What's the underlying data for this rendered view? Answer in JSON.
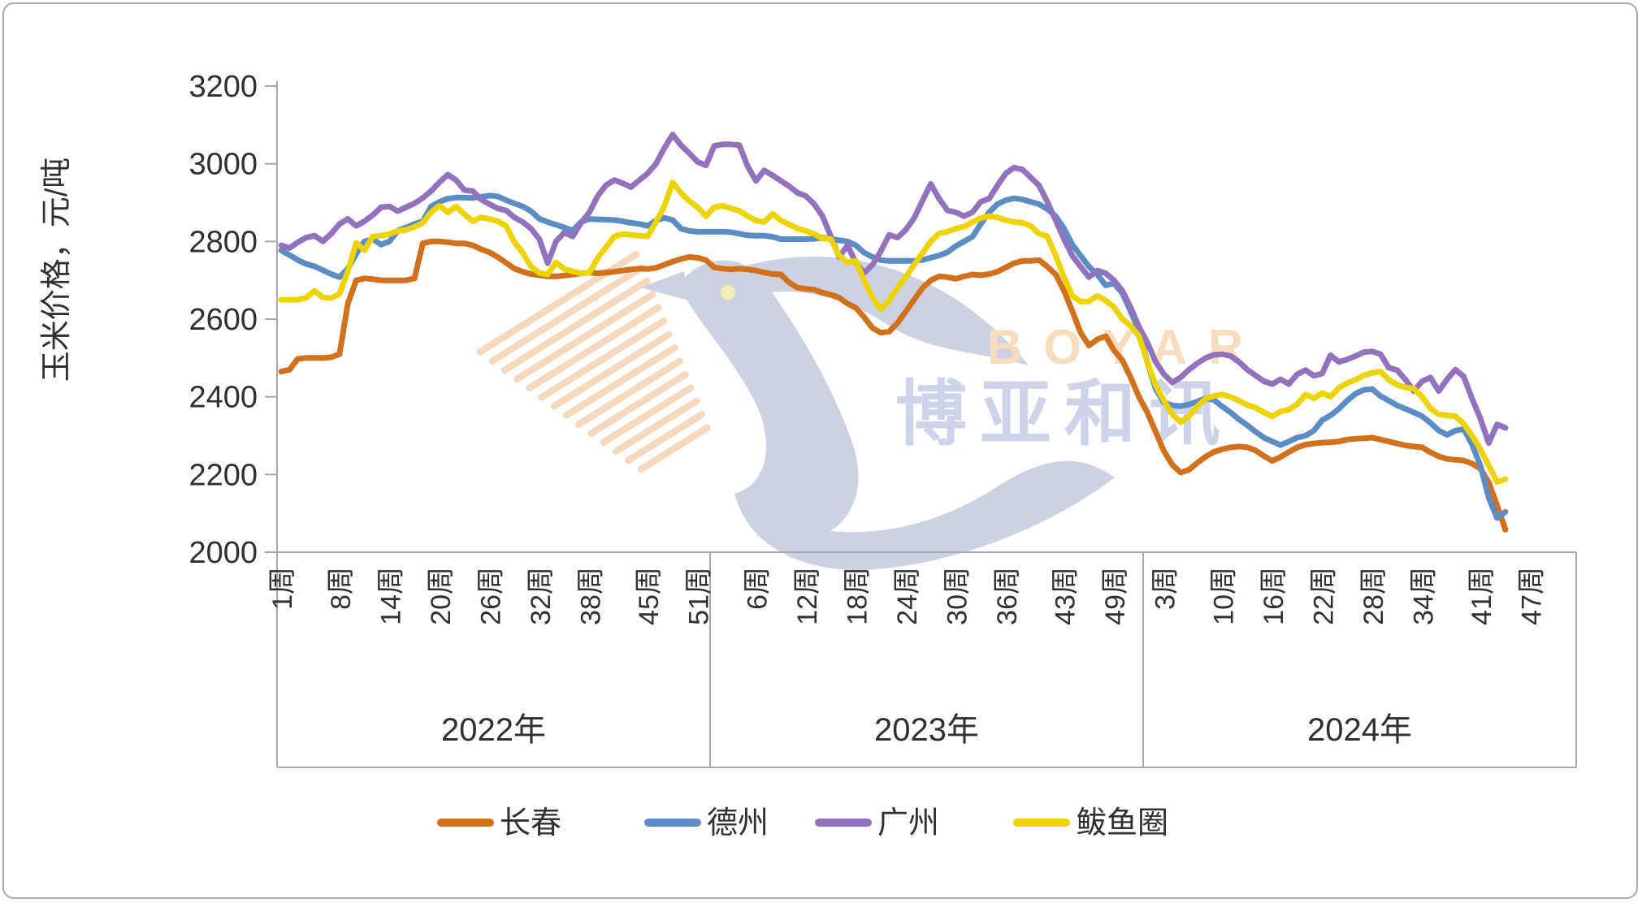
{
  "chart_data": {
    "type": "line",
    "title": "",
    "ylabel": "玉米价格，元/吨",
    "grid": false,
    "legend_position": "bottom",
    "y_axis": {
      "min": 2000,
      "max": 3200,
      "step": 200,
      "tick_labels": [
        "3200",
        "3000",
        "2800",
        "2600",
        "2400",
        "2200",
        "2000"
      ]
    },
    "x_axis": {
      "unit_suffix": "周",
      "groups": [
        {
          "year_label": "2022年",
          "weeks_in_year": 52,
          "tick_weeks": [
            1,
            8,
            14,
            20,
            26,
            32,
            38,
            45,
            51
          ]
        },
        {
          "year_label": "2023年",
          "weeks_in_year": 52,
          "tick_weeks": [
            6,
            12,
            18,
            24,
            30,
            36,
            43,
            49
          ]
        },
        {
          "year_label": "2024年",
          "weeks_in_year": 52,
          "tick_weeks": [
            3,
            10,
            16,
            22,
            28,
            34,
            41,
            47
          ]
        }
      ]
    },
    "series": [
      {
        "name": "长春",
        "color": "#D2711C",
        "values_2022": [
          2465,
          2470,
          2498,
          2500,
          2500,
          2500,
          2502,
          2510,
          2640,
          2700,
          2705,
          2703,
          2700,
          2700,
          2700,
          2700,
          2705,
          2795,
          2800,
          2800,
          2798,
          2795,
          2795,
          2790,
          2780,
          2772,
          2760,
          2745,
          2730,
          2722,
          2716,
          2713,
          2710,
          2710,
          2712,
          2715,
          2718,
          2720,
          2718,
          2720,
          2722,
          2725,
          2728,
          2730,
          2729,
          2732,
          2740,
          2748,
          2755,
          2760,
          2758,
          2752
        ],
        "values_2023": [
          2733,
          2730,
          2728,
          2730,
          2728,
          2725,
          2720,
          2716,
          2715,
          2694,
          2681,
          2678,
          2676,
          2668,
          2663,
          2655,
          2640,
          2629,
          2605,
          2577,
          2565,
          2568,
          2590,
          2620,
          2650,
          2680,
          2700,
          2710,
          2708,
          2704,
          2710,
          2715,
          2713,
          2716,
          2722,
          2733,
          2744,
          2750,
          2750,
          2752,
          2735,
          2715,
          2673,
          2620,
          2565,
          2532,
          2548,
          2556,
          2520,
          2494,
          2450,
          2400
        ],
        "values_2024": [
          2360,
          2310,
          2260,
          2225,
          2205,
          2212,
          2230,
          2246,
          2258,
          2265,
          2270,
          2272,
          2270,
          2262,
          2248,
          2235,
          2245,
          2258,
          2270,
          2277,
          2280,
          2282,
          2283,
          2285,
          2290,
          2292,
          2293,
          2295,
          2290,
          2285,
          2280,
          2275,
          2272,
          2270,
          2257,
          2247,
          2240,
          2238,
          2236,
          2228,
          2215,
          2180,
          2120,
          2058
        ]
      },
      {
        "name": "德州",
        "color": "#5B8DC4",
        "values_2022": [
          2777,
          2765,
          2752,
          2742,
          2736,
          2726,
          2716,
          2708,
          2730,
          2768,
          2800,
          2806,
          2792,
          2800,
          2828,
          2836,
          2845,
          2852,
          2890,
          2902,
          2910,
          2913,
          2913,
          2912,
          2915,
          2918,
          2916,
          2906,
          2898,
          2890,
          2878,
          2858,
          2850,
          2843,
          2836,
          2828,
          2850,
          2858,
          2857,
          2856,
          2855,
          2852,
          2848,
          2845,
          2840,
          2854,
          2861,
          2855,
          2833,
          2827,
          2825,
          2825
        ],
        "values_2023": [
          2825,
          2825,
          2824,
          2820,
          2816,
          2815,
          2815,
          2812,
          2806,
          2806,
          2806,
          2806,
          2807,
          2810,
          2806,
          2803,
          2800,
          2790,
          2771,
          2760,
          2752,
          2750,
          2750,
          2750,
          2750,
          2752,
          2758,
          2764,
          2772,
          2788,
          2800,
          2812,
          2845,
          2875,
          2896,
          2906,
          2911,
          2908,
          2902,
          2896,
          2883,
          2865,
          2833,
          2792,
          2763,
          2735,
          2715,
          2687,
          2692,
          2667,
          2620,
          2569
        ],
        "values_2024": [
          2490,
          2420,
          2385,
          2378,
          2376,
          2380,
          2388,
          2396,
          2392,
          2375,
          2360,
          2342,
          2327,
          2310,
          2295,
          2285,
          2276,
          2285,
          2295,
          2300,
          2313,
          2340,
          2352,
          2369,
          2390,
          2408,
          2418,
          2420,
          2402,
          2390,
          2378,
          2369,
          2360,
          2350,
          2333,
          2313,
          2302,
          2313,
          2317,
          2277,
          2223,
          2140,
          2088,
          2104
        ]
      },
      {
        "name": "广州",
        "color": "#9272BC",
        "values_2022": [
          2790,
          2783,
          2798,
          2810,
          2815,
          2800,
          2820,
          2845,
          2858,
          2840,
          2852,
          2868,
          2888,
          2890,
          2878,
          2888,
          2898,
          2912,
          2930,
          2952,
          2972,
          2958,
          2932,
          2930,
          2908,
          2896,
          2885,
          2880,
          2862,
          2850,
          2833,
          2806,
          2744,
          2800,
          2823,
          2813,
          2848,
          2875,
          2917,
          2945,
          2958,
          2950,
          2940,
          2958,
          2975,
          3000,
          3040,
          3075,
          3048,
          3027,
          3005,
          2996
        ],
        "values_2023": [
          3046,
          3050,
          3050,
          3048,
          2994,
          2956,
          2983,
          2970,
          2956,
          2942,
          2925,
          2917,
          2896,
          2865,
          2813,
          2760,
          2790,
          2745,
          2719,
          2740,
          2775,
          2817,
          2810,
          2830,
          2860,
          2905,
          2948,
          2910,
          2880,
          2875,
          2865,
          2875,
          2902,
          2910,
          2944,
          2975,
          2990,
          2985,
          2965,
          2944,
          2902,
          2854,
          2806,
          2763,
          2735,
          2708,
          2725,
          2718,
          2700,
          2673,
          2630,
          2580
        ],
        "values_2024": [
          2540,
          2490,
          2458,
          2437,
          2450,
          2470,
          2486,
          2500,
          2508,
          2510,
          2505,
          2490,
          2470,
          2455,
          2440,
          2433,
          2445,
          2433,
          2458,
          2469,
          2454,
          2460,
          2507,
          2490,
          2496,
          2505,
          2515,
          2517,
          2510,
          2475,
          2469,
          2444,
          2415,
          2440,
          2450,
          2415,
          2445,
          2470,
          2452,
          2395,
          2344,
          2281,
          2329,
          2320
        ]
      },
      {
        "name": "鲅鱼圈",
        "color": "#EDD300",
        "values_2022": [
          2650,
          2650,
          2650,
          2655,
          2673,
          2656,
          2654,
          2665,
          2723,
          2796,
          2777,
          2813,
          2815,
          2819,
          2827,
          2830,
          2837,
          2848,
          2875,
          2892,
          2875,
          2890,
          2870,
          2852,
          2862,
          2858,
          2852,
          2840,
          2798,
          2771,
          2735,
          2719,
          2715,
          2746,
          2729,
          2723,
          2718,
          2720,
          2757,
          2785,
          2813,
          2819,
          2817,
          2815,
          2813,
          2850,
          2890,
          2952,
          2925,
          2904,
          2888,
          2865
        ],
        "values_2023": [
          2888,
          2892,
          2885,
          2879,
          2865,
          2854,
          2850,
          2871,
          2854,
          2844,
          2833,
          2827,
          2819,
          2808,
          2806,
          2763,
          2746,
          2750,
          2700,
          2655,
          2625,
          2648,
          2680,
          2708,
          2740,
          2770,
          2800,
          2821,
          2825,
          2833,
          2838,
          2850,
          2860,
          2865,
          2862,
          2855,
          2850,
          2848,
          2840,
          2820,
          2813,
          2763,
          2708,
          2660,
          2645,
          2646,
          2660,
          2648,
          2631,
          2600,
          2583,
          2556
        ],
        "values_2024": [
          2490,
          2430,
          2390,
          2355,
          2335,
          2350,
          2375,
          2395,
          2402,
          2406,
          2400,
          2390,
          2379,
          2372,
          2360,
          2350,
          2362,
          2367,
          2381,
          2406,
          2396,
          2410,
          2400,
          2423,
          2435,
          2444,
          2455,
          2462,
          2465,
          2444,
          2431,
          2424,
          2421,
          2400,
          2370,
          2355,
          2352,
          2350,
          2330,
          2300,
          2265,
          2223,
          2181,
          2188
        ]
      }
    ]
  },
  "watermark": {
    "logo_text": "BOYAR",
    "cjk_text": "博亚和讯",
    "orange_text_color": "#F7DCBE",
    "blue_text_color": "#CDD3E8",
    "logo_shape_color": "#CDD2E3",
    "stripe_color": "#F6D9BC",
    "eye_color": "#F2ECB4"
  },
  "frame": {
    "background": "#FFFFFF",
    "border_color": "#AAAAAA",
    "axis_color": "#A8A8A8",
    "text_color": "#303030"
  }
}
